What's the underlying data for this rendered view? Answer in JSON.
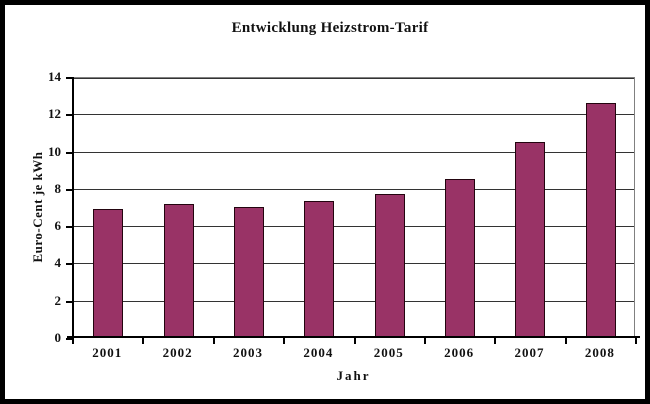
{
  "chart_data": {
    "type": "bar",
    "title": "Entwicklung Heizstrom-Tarif",
    "xlabel": "Jahr",
    "ylabel": "Euro-Cent je kWh",
    "categories": [
      "2001",
      "2002",
      "2003",
      "2004",
      "2005",
      "2006",
      "2007",
      "2008"
    ],
    "values": [
      6.85,
      7.15,
      7.0,
      7.3,
      7.65,
      8.5,
      10.45,
      12.55
    ],
    "ylim": [
      0,
      14
    ],
    "ytick_step": 2,
    "grid": true,
    "legend": false,
    "colors": {
      "bar_fill": "#993366",
      "bar_border": "#23040f",
      "gridline": "#333333",
      "axis_line": "#000000",
      "plot_border": "#808080",
      "frame_border": "#000000",
      "background": "#ffffff",
      "text": "#111111"
    }
  }
}
